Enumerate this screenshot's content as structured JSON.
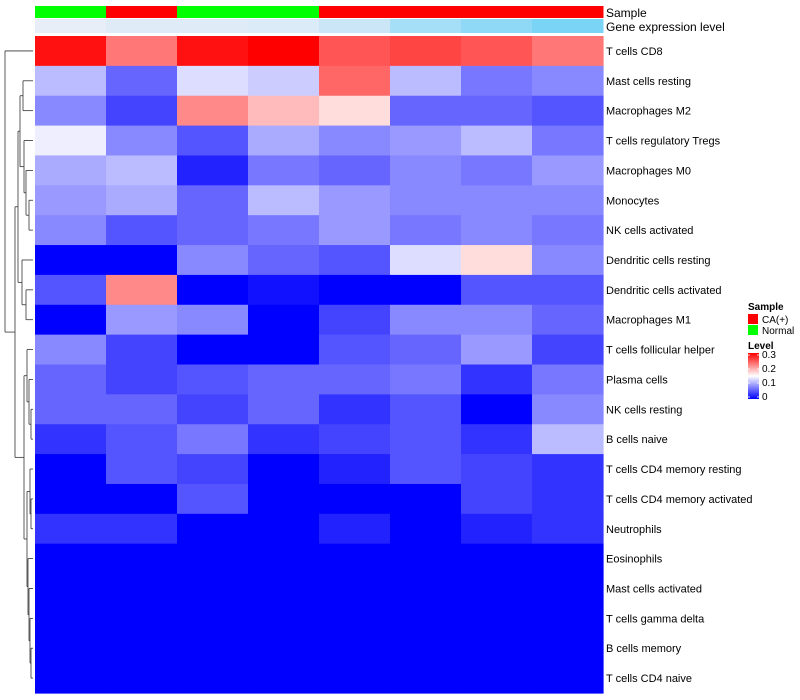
{
  "chart_data": {
    "type": "heatmap",
    "title": "",
    "annotation_labels": {
      "sample": "Sample",
      "gene": "Gene expression level"
    },
    "sample_groups": [
      "Normal",
      "CA(+)",
      "Normal",
      "Normal",
      "CA(+)",
      "CA(+)",
      "CA(+)",
      "CA(+)"
    ],
    "gene_expression": [
      0.95,
      0.9,
      0.9,
      0.88,
      0.78,
      0.55,
      0.42,
      0.3
    ],
    "rows": [
      "T cells CD8",
      "Mast cells resting",
      "Macrophages M2",
      "T cells regulatory  Tregs",
      "Macrophages M0",
      "Monocytes",
      "NK cells activated",
      "Dendritic cells resting",
      "Dendritic cells activated",
      "Macrophages M1",
      "T cells follicular helper",
      "Plasma cells",
      "NK cells resting",
      "B cells naive",
      "T cells CD4 memory resting",
      "T cells CD4 memory activated",
      "Neutrophils",
      "Eosinophils",
      "Mast cells activated",
      "T cells gamma delta",
      "B cells memory",
      "T cells CD4 naive"
    ],
    "values": [
      [
        0.29,
        0.23,
        0.29,
        0.3,
        0.25,
        0.26,
        0.25,
        0.23
      ],
      [
        0.11,
        0.06,
        0.13,
        0.12,
        0.24,
        0.11,
        0.07,
        0.08
      ],
      [
        0.08,
        0.04,
        0.22,
        0.19,
        0.17,
        0.06,
        0.06,
        0.05
      ],
      [
        0.14,
        0.08,
        0.05,
        0.1,
        0.08,
        0.09,
        0.11,
        0.07
      ],
      [
        0.1,
        0.11,
        0.02,
        0.07,
        0.06,
        0.08,
        0.07,
        0.09
      ],
      [
        0.09,
        0.1,
        0.06,
        0.11,
        0.09,
        0.08,
        0.08,
        0.08
      ],
      [
        0.08,
        0.05,
        0.06,
        0.07,
        0.09,
        0.07,
        0.08,
        0.07
      ],
      [
        0.0,
        0.0,
        0.08,
        0.06,
        0.05,
        0.13,
        0.17,
        0.08
      ],
      [
        0.05,
        0.22,
        0.0,
        0.01,
        0.0,
        0.0,
        0.05,
        0.05
      ],
      [
        0.0,
        0.09,
        0.08,
        0.0,
        0.04,
        0.08,
        0.08,
        0.06
      ],
      [
        0.08,
        0.04,
        0.0,
        0.0,
        0.05,
        0.06,
        0.09,
        0.04
      ],
      [
        0.06,
        0.04,
        0.05,
        0.06,
        0.06,
        0.07,
        0.03,
        0.07
      ],
      [
        0.06,
        0.06,
        0.04,
        0.06,
        0.03,
        0.05,
        0.0,
        0.08
      ],
      [
        0.03,
        0.05,
        0.07,
        0.03,
        0.04,
        0.05,
        0.03,
        0.11
      ],
      [
        0.0,
        0.05,
        0.04,
        0.0,
        0.02,
        0.05,
        0.04,
        0.03
      ],
      [
        0.0,
        0.0,
        0.05,
        0.0,
        0.0,
        0.0,
        0.04,
        0.03
      ],
      [
        0.03,
        0.03,
        0.0,
        0.0,
        0.02,
        0.0,
        0.02,
        0.03
      ],
      [
        0.0,
        0.0,
        0.0,
        0.0,
        0.0,
        0.0,
        0.0,
        0.0
      ],
      [
        0.0,
        0.0,
        0.0,
        0.0,
        0.0,
        0.0,
        0.0,
        0.0
      ],
      [
        0.0,
        0.0,
        0.0,
        0.0,
        0.0,
        0.0,
        0.0,
        0.0
      ],
      [
        0.0,
        0.0,
        0.0,
        0.0,
        0.0,
        0.0,
        0.0,
        0.0
      ],
      [
        0.0,
        0.0,
        0.0,
        0.0,
        0.0,
        0.0,
        0.0,
        0.0
      ]
    ],
    "color_scale": {
      "min": 0,
      "max": 0.3,
      "low": "#0000ff",
      "mid": "#ffffff",
      "high": "#ff0000",
      "mid_value": 0.15
    },
    "legend": {
      "sample_title": "Sample",
      "sample_entries": [
        {
          "label": "CA(+)",
          "color": "#ff0000"
        },
        {
          "label": "Normal",
          "color": "#00ff00"
        }
      ],
      "level_title": "Level",
      "level_ticks": [
        "0.3",
        "0.2",
        "0.1",
        "0"
      ],
      "placement": "right"
    }
  }
}
